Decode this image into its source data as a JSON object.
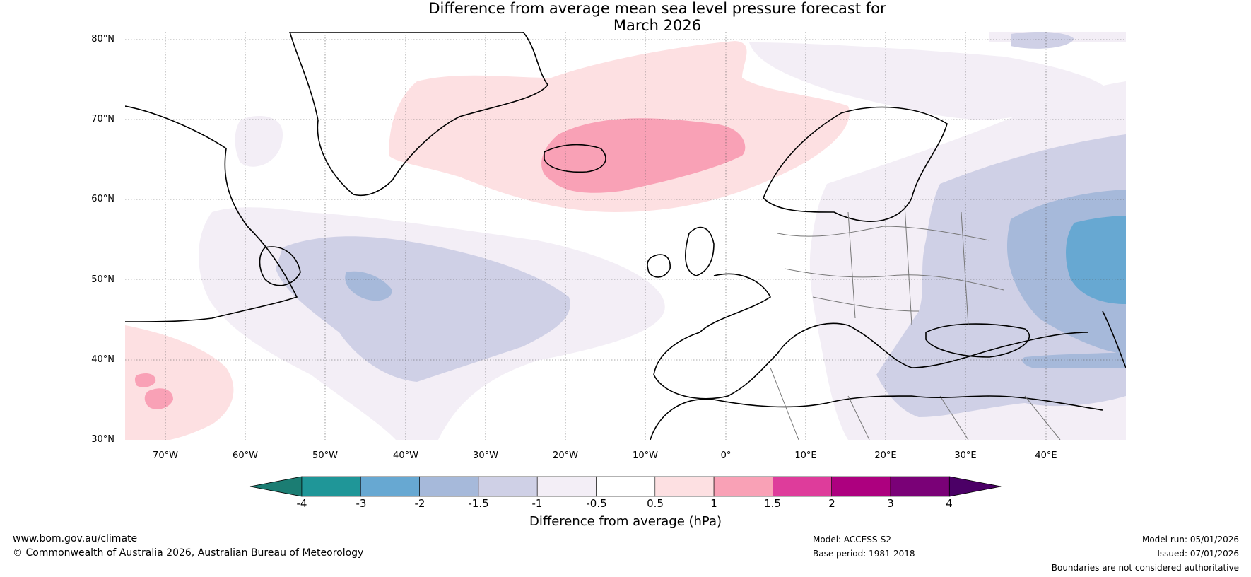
{
  "title": {
    "line1": "Difference from average mean sea level pressure forecast for",
    "line2": "March 2026"
  },
  "map": {
    "lat_labels": [
      "80°N",
      "70°N",
      "60°N",
      "50°N",
      "40°N",
      "30°N"
    ],
    "lon_labels": [
      "70°W",
      "60°W",
      "50°W",
      "40°W",
      "30°W",
      "20°W",
      "10°W",
      "0°",
      "10°E",
      "20°E",
      "30°E",
      "40°E"
    ],
    "extent": {
      "lon_min": -75,
      "lon_max": 50,
      "lat_min": 30,
      "lat_max": 81
    }
  },
  "colorbar": {
    "ticks": [
      "-4",
      "-3",
      "-2",
      "-1.5",
      "-1",
      "-0.5",
      "0.5",
      "1",
      "1.5",
      "2",
      "3",
      "4"
    ],
    "colors": [
      "#1b7d73",
      "#1f9698",
      "#67a8d2",
      "#a6b9da",
      "#cfd0e6",
      "#f3eef6",
      "#ffffff",
      "#fde0e2",
      "#f9a1b6",
      "#de3c9b",
      "#ad007f",
      "#7a0177",
      "#4b0066"
    ],
    "label": "Difference from average (hPa)"
  },
  "footer": {
    "website": "www.bom.gov.au/climate",
    "copyright": "© Commonwealth of Australia 2026, Australian Bureau of Meteorology",
    "model": "Model: ACCESS-S2",
    "base_period": "Base period: 1981-2018",
    "model_run": "Model run: 05/01/2026",
    "issued": "Issued: 07/01/2026",
    "disclaimer": "Boundaries are not considered authoritative"
  }
}
